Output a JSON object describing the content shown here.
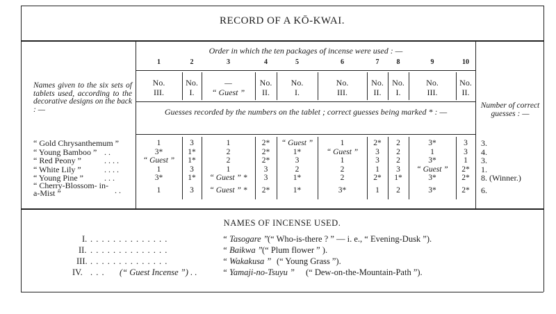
{
  "title": "RECORD OF A KŌ-KWAI.",
  "order_heading": "Order in which the ten packages of incense were used : —",
  "left_heading": "Names given to the six sets of tablets used, according to the decorative designs on the back : —",
  "right_heading": "Number of correct guesses : —",
  "guesses_heading": "Guesses recorded by the numbers on the tablet ; correct guesses being marked * : —",
  "package_numbers": [
    "1",
    "2",
    "3",
    "4",
    "5",
    "6",
    "7",
    "8",
    "9",
    "10"
  ],
  "incense_used": [
    [
      "No.",
      "III."
    ],
    [
      "No.",
      "I."
    ],
    [
      "—",
      "“ Guest ”"
    ],
    [
      "No.",
      "II."
    ],
    [
      "No.",
      "I."
    ],
    [
      "No.",
      "III."
    ],
    [
      "No.",
      "II."
    ],
    [
      "No.",
      "I."
    ],
    [
      "No.",
      "III."
    ],
    [
      "No.",
      "II."
    ]
  ],
  "rows": [
    {
      "name": "“ Gold Chrysanthemum ”",
      "dots": "",
      "guesses": [
        "1",
        "3",
        "1",
        "2*",
        "“ Guest ”",
        "1",
        "2*",
        "2",
        "3*",
        "3"
      ],
      "correct": "3."
    },
    {
      "name": "“ Young Bamboo ”",
      "dots": ". .",
      "guesses": [
        "3*",
        "1*",
        "2",
        "2*",
        "1*",
        "“ Guest ”",
        "3",
        "2",
        "1",
        "3"
      ],
      "correct": "4."
    },
    {
      "name": "“ Red Peony ”",
      "dots": ". . . .",
      "guesses": [
        "“ Guest ”",
        "1*",
        "2",
        "2*",
        "3",
        "1",
        "3",
        "2",
        "3*",
        "1"
      ],
      "correct": "3."
    },
    {
      "name": "“ White Lily ”",
      "dots": ". . . .",
      "guesses": [
        "1",
        "3",
        "1",
        "3",
        "2",
        "2",
        "1",
        "3",
        "“ Guest ”",
        "2*"
      ],
      "correct": "1."
    },
    {
      "name": "“ Young Pine ”",
      "dots": ". . .",
      "guesses": [
        "3*",
        "1*",
        "“ Guest ” *",
        "3",
        "1*",
        "2",
        "2*",
        "1*",
        "3*",
        "2*"
      ],
      "correct": "8. (Winner.)"
    },
    {
      "name": "“ Cherry-Blossom- in-a-Mist ”",
      "dots": ". .",
      "guesses": [
        "1",
        "3",
        "“ Guest ” *",
        "2*",
        "1*",
        "3*",
        "1",
        "2",
        "3*",
        "2*"
      ],
      "correct": "6."
    }
  ],
  "names_section": {
    "heading": "NAMES OF INCENSE USED.",
    "items": [
      {
        "numeral": "I.",
        "dots": ". . . . . . . . . . . . . .",
        "note": "",
        "name": "“ Tasogare ”",
        "meaning": "(“ Who-is-there ? ” — i. e., “ Evening-Dusk ”)."
      },
      {
        "numeral": "II.",
        "dots": ". . . . . . . . . . . . . .",
        "note": "",
        "name": "“ Baikwa ”",
        "meaning": "(“ Plum flower ” )."
      },
      {
        "numeral": "III.",
        "dots": ". . . . . . . . . . . . . .",
        "note": "",
        "name": "“ Wakakusa ”",
        "meaning": "(“ Young Grass ”)."
      },
      {
        "numeral": "IV.",
        "dots": ". . .",
        "note": "(“ Guest Incense ”) . .",
        "name": "“ Yamaji-no-Tsuyu ”",
        "meaning": "(“ Dew-on-the-Mountain-Path ”)."
      }
    ]
  }
}
